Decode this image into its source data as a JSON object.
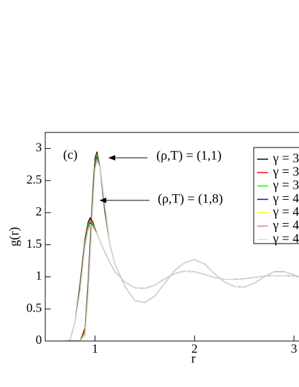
{
  "chart_data": {
    "type": "line",
    "x_label": "r",
    "y_label": "g(r)",
    "annotations": [
      "(c)",
      "(ρ,T) = (1,1)",
      "(ρ,T) = (1,8)"
    ],
    "xlim": [
      0.5,
      3.05
    ],
    "ylim": [
      0,
      3.25
    ],
    "xticks": [
      1,
      2,
      3
    ],
    "yticks": [
      0,
      0.5,
      1,
      1.5,
      2,
      2.5,
      3
    ],
    "x": [
      0.7,
      0.75,
      0.8,
      0.85,
      0.9,
      0.93,
      0.95,
      0.98,
      1.0,
      1.02,
      1.05,
      1.1,
      1.15,
      1.2,
      1.3,
      1.4,
      1.5,
      1.6,
      1.7,
      1.8,
      1.9,
      2.0,
      2.1,
      2.2,
      2.3,
      2.4,
      2.5,
      2.6,
      2.7,
      2.8,
      2.9,
      3.0,
      3.05
    ],
    "series": [
      {
        "name": "γ = 3",
        "color": "#000000",
        "values": [
          0,
          0,
          0,
          0,
          0.2,
          0.9,
          1.5,
          2.4,
          2.85,
          2.95,
          2.7,
          2.0,
          1.5,
          1.2,
          0.85,
          0.63,
          0.6,
          0.7,
          0.9,
          1.1,
          1.22,
          1.27,
          1.2,
          1.05,
          0.92,
          0.85,
          0.84,
          0.9,
          1.0,
          1.08,
          1.08,
          1.03,
          1.0
        ]
      },
      {
        "name": "γ = 3",
        "color": "#ff0000",
        "values": [
          0,
          0,
          0,
          0,
          0.18,
          0.85,
          1.45,
          2.35,
          2.82,
          2.93,
          2.72,
          2.03,
          1.5,
          1.2,
          0.85,
          0.63,
          0.6,
          0.7,
          0.9,
          1.1,
          1.22,
          1.27,
          1.2,
          1.05,
          0.92,
          0.85,
          0.84,
          0.9,
          1.0,
          1.08,
          1.08,
          1.03,
          1.0
        ]
      },
      {
        "name": "γ = 3",
        "color": "#00ff00",
        "values": [
          0,
          0,
          0,
          0,
          0.15,
          0.8,
          1.4,
          2.3,
          2.78,
          2.9,
          2.72,
          2.05,
          1.5,
          1.2,
          0.85,
          0.63,
          0.6,
          0.7,
          0.9,
          1.1,
          1.22,
          1.27,
          1.2,
          1.05,
          0.92,
          0.85,
          0.84,
          0.9,
          1.0,
          1.08,
          1.08,
          1.03,
          1.0
        ]
      },
      {
        "name": "γ = 4",
        "color": "#0000ff",
        "values": [
          0,
          0,
          0,
          0,
          0.13,
          0.75,
          1.35,
          2.25,
          2.74,
          2.86,
          2.72,
          2.08,
          1.5,
          1.2,
          0.85,
          0.63,
          0.6,
          0.7,
          0.9,
          1.1,
          1.22,
          1.27,
          1.2,
          1.05,
          0.92,
          0.85,
          0.84,
          0.9,
          1.0,
          1.08,
          1.08,
          1.03,
          1.0
        ]
      },
      {
        "name": "γ = 4",
        "color": "#ffff00",
        "values": [
          0,
          0,
          0,
          0,
          0.12,
          0.72,
          1.3,
          2.2,
          2.7,
          2.83,
          2.72,
          2.1,
          1.5,
          1.2,
          0.85,
          0.63,
          0.6,
          0.7,
          0.9,
          1.1,
          1.22,
          1.27,
          1.2,
          1.05,
          0.92,
          0.85,
          0.84,
          0.9,
          1.0,
          1.08,
          1.08,
          1.03,
          1.0
        ]
      },
      {
        "name": "γ = 4",
        "color": "#bc8f8f",
        "values": [
          0,
          0,
          0,
          0,
          0.1,
          0.7,
          1.27,
          2.17,
          2.67,
          2.81,
          2.72,
          2.12,
          1.5,
          1.2,
          0.85,
          0.63,
          0.6,
          0.7,
          0.9,
          1.1,
          1.22,
          1.27,
          1.2,
          1.05,
          0.92,
          0.85,
          0.84,
          0.9,
          1.0,
          1.08,
          1.08,
          1.03,
          1.0
        ]
      },
      {
        "name": "γ = 4",
        "color": "#dcdcdc",
        "values": [
          0,
          0,
          0,
          0,
          0.09,
          0.68,
          1.25,
          2.15,
          2.65,
          2.79,
          2.71,
          2.13,
          1.5,
          1.2,
          0.85,
          0.63,
          0.6,
          0.7,
          0.9,
          1.1,
          1.22,
          1.27,
          1.2,
          1.05,
          0.92,
          0.85,
          0.84,
          0.9,
          1.0,
          1.08,
          1.08,
          1.03,
          1.0
        ]
      },
      {
        "color": "#000000",
        "values": [
          0,
          0.02,
          0.3,
          0.9,
          1.6,
          1.85,
          1.92,
          1.85,
          1.75,
          1.67,
          1.56,
          1.38,
          1.22,
          1.08,
          0.92,
          0.83,
          0.82,
          0.87,
          0.97,
          1.05,
          1.09,
          1.08,
          1.04,
          0.99,
          0.96,
          0.96,
          0.97,
          0.99,
          1.01,
          1.02,
          1.02,
          1.01,
          1.0
        ]
      },
      {
        "color": "#ff0000",
        "values": [
          0,
          0.02,
          0.3,
          0.88,
          1.58,
          1.83,
          1.9,
          1.84,
          1.75,
          1.67,
          1.56,
          1.38,
          1.22,
          1.08,
          0.92,
          0.83,
          0.82,
          0.87,
          0.97,
          1.05,
          1.09,
          1.08,
          1.04,
          0.99,
          0.96,
          0.96,
          0.97,
          0.99,
          1.01,
          1.02,
          1.02,
          1.01,
          1.0
        ]
      },
      {
        "color": "#00ff00",
        "values": [
          0,
          0.02,
          0.3,
          0.85,
          1.55,
          1.8,
          1.87,
          1.82,
          1.74,
          1.67,
          1.56,
          1.38,
          1.22,
          1.08,
          0.92,
          0.83,
          0.82,
          0.87,
          0.97,
          1.05,
          1.09,
          1.08,
          1.04,
          0.99,
          0.96,
          0.96,
          0.97,
          0.99,
          1.01,
          1.02,
          1.02,
          1.01,
          1.0
        ]
      },
      {
        "color": "#0000ff",
        "values": [
          0,
          0.02,
          0.3,
          0.83,
          1.52,
          1.77,
          1.84,
          1.8,
          1.73,
          1.67,
          1.56,
          1.38,
          1.22,
          1.08,
          0.92,
          0.83,
          0.82,
          0.87,
          0.97,
          1.05,
          1.09,
          1.08,
          1.04,
          0.99,
          0.96,
          0.96,
          0.97,
          0.99,
          1.01,
          1.02,
          1.02,
          1.01,
          1.0
        ]
      },
      {
        "color": "#ffff00",
        "values": [
          0,
          0.02,
          0.3,
          0.8,
          1.5,
          1.75,
          1.82,
          1.79,
          1.72,
          1.67,
          1.56,
          1.38,
          1.22,
          1.08,
          0.92,
          0.83,
          0.82,
          0.87,
          0.97,
          1.05,
          1.09,
          1.08,
          1.04,
          0.99,
          0.96,
          0.96,
          0.97,
          0.99,
          1.01,
          1.02,
          1.02,
          1.01,
          1.0
        ]
      },
      {
        "color": "#bc8f8f",
        "values": [
          0,
          0.02,
          0.3,
          0.78,
          1.48,
          1.73,
          1.8,
          1.78,
          1.72,
          1.67,
          1.56,
          1.38,
          1.22,
          1.08,
          0.92,
          0.83,
          0.82,
          0.87,
          0.97,
          1.05,
          1.09,
          1.08,
          1.04,
          0.99,
          0.96,
          0.96,
          0.97,
          0.99,
          1.01,
          1.02,
          1.02,
          1.01,
          1.0
        ]
      },
      {
        "color": "#dcdcdc",
        "values": [
          0,
          0.02,
          0.3,
          0.76,
          1.46,
          1.71,
          1.78,
          1.77,
          1.71,
          1.67,
          1.56,
          1.38,
          1.22,
          1.08,
          0.92,
          0.83,
          0.82,
          0.87,
          0.97,
          1.05,
          1.09,
          1.08,
          1.04,
          0.99,
          0.96,
          0.96,
          0.97,
          0.99,
          1.01,
          1.02,
          1.02,
          1.01,
          1.0
        ]
      }
    ]
  }
}
